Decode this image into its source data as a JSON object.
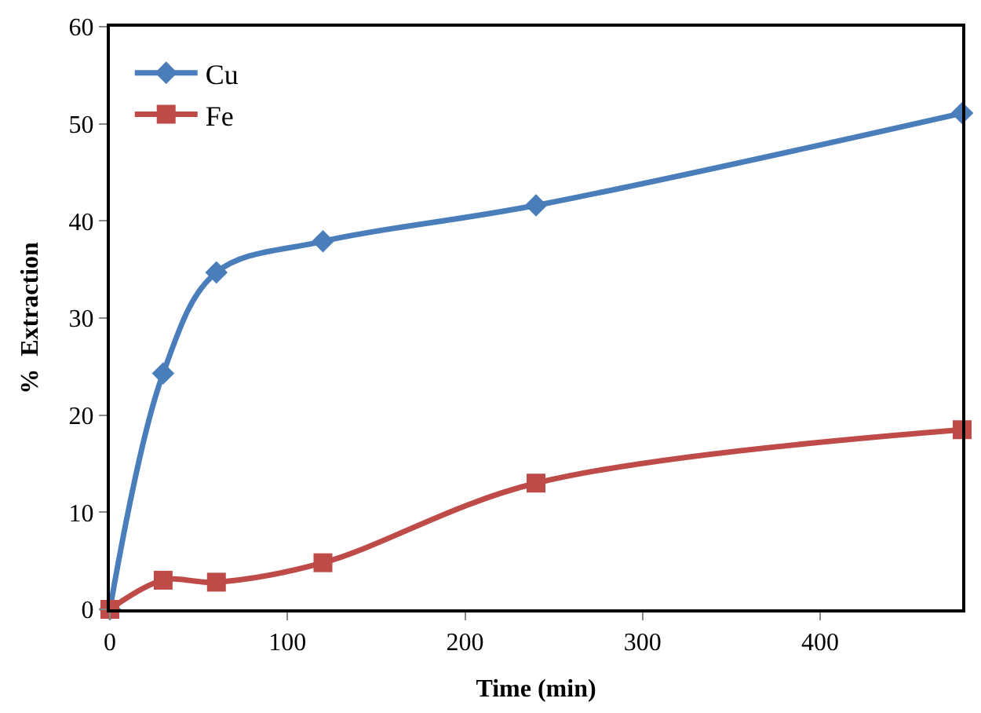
{
  "chart_data": {
    "type": "line",
    "xlabel": "Time (min)",
    "ylabel": "%  Extraction",
    "x": [
      0,
      30,
      60,
      120,
      240,
      480
    ],
    "series": [
      {
        "name": "Cu",
        "color": "#4a7ebb",
        "marker": "diamond",
        "values": [
          0,
          24.3,
          34.7,
          37.9,
          41.6,
          51.1
        ]
      },
      {
        "name": "Fe",
        "color": "#be4b48",
        "marker": "square",
        "values": [
          0,
          3.0,
          2.8,
          4.8,
          13.0,
          18.5
        ]
      }
    ],
    "xlim": [
      0,
      480
    ],
    "xticks": [
      0,
      100,
      200,
      300,
      400
    ],
    "ylim": [
      0,
      60
    ],
    "yticks": [
      0,
      10,
      20,
      30,
      40,
      50,
      60
    ],
    "legend": "top left",
    "line_style": "solid"
  }
}
